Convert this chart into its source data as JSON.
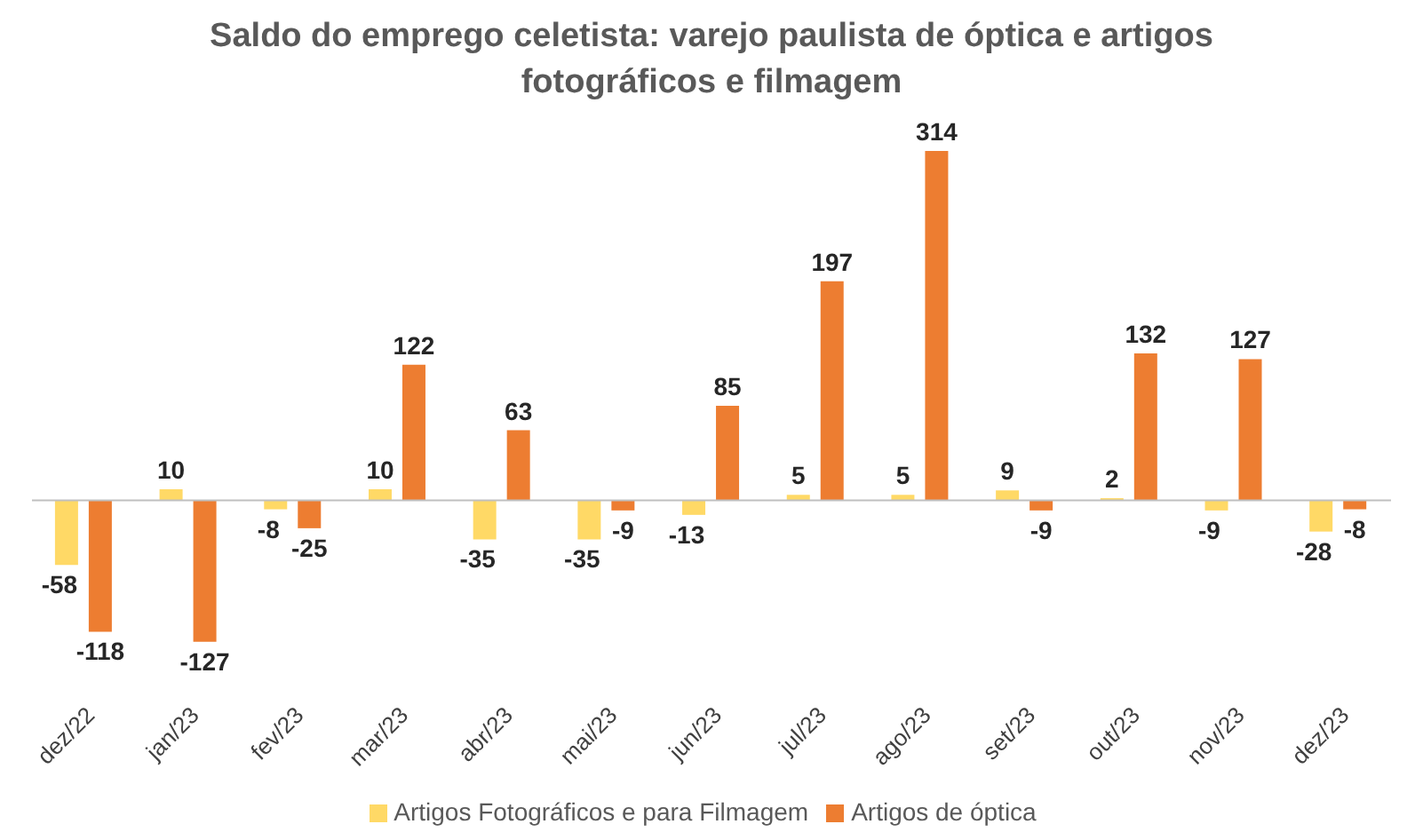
{
  "chart_data": {
    "type": "bar",
    "title": "Saldo do emprego celetista: varejo paulista de óptica e artigos fotográficos e filmagem",
    "categories": [
      "dez/22",
      "jan/23",
      "fev/23",
      "mar/23",
      "abr/23",
      "mai/23",
      "jun/23",
      "jul/23",
      "ago/23",
      "set/23",
      "out/23",
      "nov/23",
      "dez/23"
    ],
    "series": [
      {
        "name": "Artigos Fotográficos e para Filmagem",
        "color": "#ffd966",
        "values": [
          -58,
          10,
          -8,
          10,
          -35,
          -35,
          -13,
          5,
          5,
          9,
          2,
          -9,
          -28
        ]
      },
      {
        "name": "Artigos de óptica",
        "color": "#ed7d31",
        "values": [
          -118,
          -127,
          -25,
          122,
          63,
          -9,
          85,
          197,
          314,
          -9,
          132,
          127,
          -8
        ]
      }
    ],
    "data_labels": true,
    "legend": "bottom"
  }
}
